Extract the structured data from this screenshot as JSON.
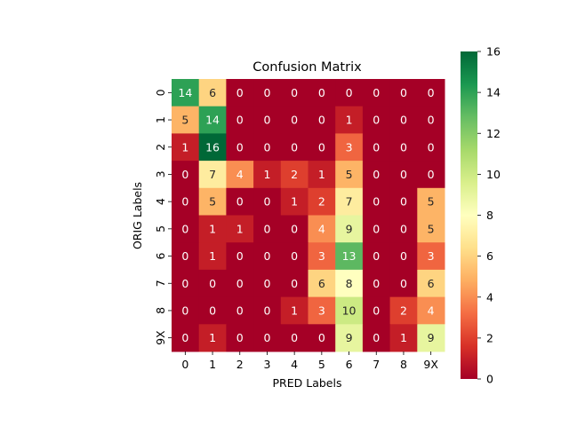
{
  "chart_data": {
    "type": "heatmap",
    "title": "Confusion Matrix",
    "xlabel": "PRED Labels",
    "ylabel": "ORIG Labels",
    "x_categories": [
      "0",
      "1",
      "2",
      "3",
      "4",
      "5",
      "6",
      "7",
      "8",
      "9X"
    ],
    "y_categories": [
      "0",
      "1",
      "2",
      "3",
      "4",
      "5",
      "6",
      "7",
      "8",
      "9X"
    ],
    "values": [
      [
        14,
        6,
        0,
        0,
        0,
        0,
        0,
        0,
        0,
        0
      ],
      [
        5,
        14,
        0,
        0,
        0,
        0,
        1,
        0,
        0,
        0
      ],
      [
        1,
        16,
        0,
        0,
        0,
        0,
        3,
        0,
        0,
        0
      ],
      [
        0,
        7,
        4,
        1,
        2,
        1,
        5,
        0,
        0,
        0
      ],
      [
        0,
        5,
        0,
        0,
        1,
        2,
        7,
        0,
        0,
        5
      ],
      [
        0,
        1,
        1,
        0,
        0,
        4,
        9,
        0,
        0,
        5
      ],
      [
        0,
        1,
        0,
        0,
        0,
        3,
        13,
        0,
        0,
        3
      ],
      [
        0,
        0,
        0,
        0,
        0,
        6,
        8,
        0,
        0,
        6
      ],
      [
        0,
        0,
        0,
        0,
        1,
        3,
        10,
        0,
        2,
        4
      ],
      [
        0,
        1,
        0,
        0,
        0,
        0,
        9,
        0,
        1,
        9
      ]
    ],
    "colormap": "RdYlGn",
    "vmin": 0,
    "vmax": 16,
    "colorbar_ticks": [
      0,
      2,
      4,
      6,
      8,
      10,
      12,
      14,
      16
    ],
    "annotations": true,
    "grid": false
  }
}
